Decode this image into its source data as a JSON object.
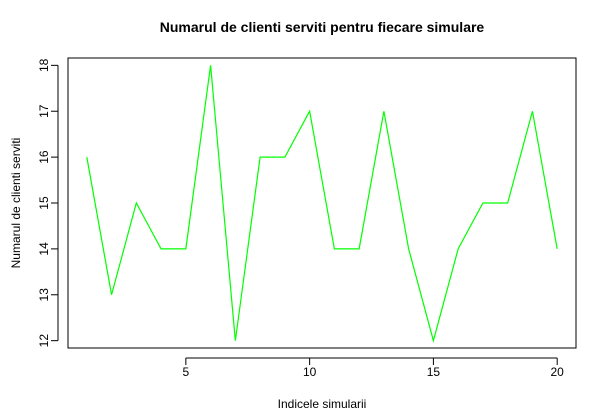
{
  "chart_data": {
    "type": "line",
    "title": "Numarul de clienti serviti pentru fiecare simulare",
    "xlabel": "Indicele simularii",
    "ylabel": "Numarul de clienti serviti",
    "x": [
      1,
      2,
      3,
      4,
      5,
      6,
      7,
      8,
      9,
      10,
      11,
      12,
      13,
      14,
      15,
      16,
      17,
      18,
      19,
      20
    ],
    "series": [
      {
        "values": [
          16,
          13,
          15,
          14,
          14,
          18,
          12,
          16,
          16,
          17,
          14,
          14,
          17,
          14,
          12,
          14,
          15,
          15,
          17,
          14
        ]
      }
    ],
    "xlim": [
      0.24,
      20.76
    ],
    "ylim": [
      11.84,
      18.16
    ],
    "xticks": [
      5,
      10,
      15,
      20
    ],
    "yticks": [
      12,
      13,
      14,
      15,
      16,
      17,
      18
    ],
    "line_color": "#00ff00",
    "grid": false,
    "legend": "none"
  }
}
